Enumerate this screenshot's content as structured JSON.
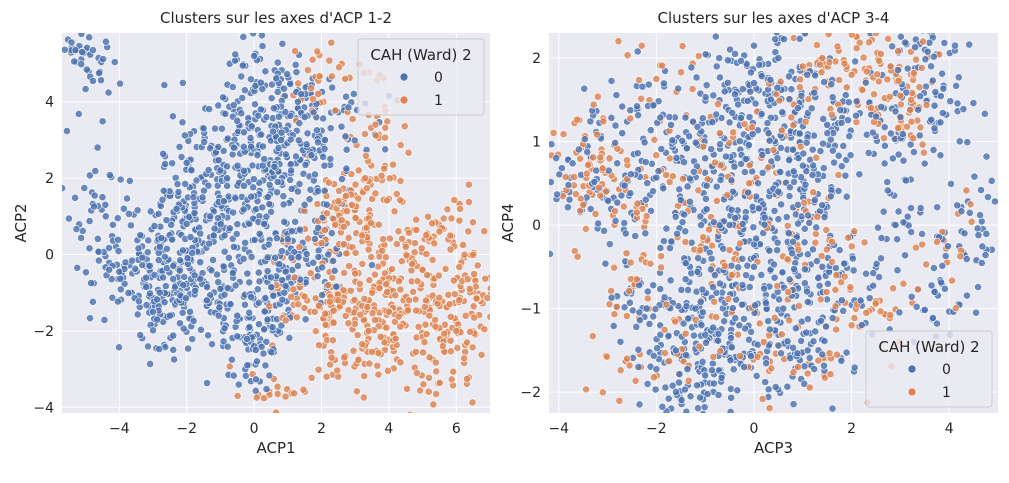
{
  "chart_data": [
    {
      "type": "scatter",
      "title": "Clusters sur les axes d'ACP 1-2",
      "xlabel": "ACP1",
      "ylabel": "ACP2",
      "xlim": [
        -5.7,
        7.0
      ],
      "ylim": [
        -4.15,
        5.8
      ],
      "xticks": [
        -4,
        -2,
        0,
        2,
        4,
        6
      ],
      "yticks": [
        -4,
        -2,
        0,
        2,
        4
      ],
      "grid": true,
      "legend": {
        "title": "CAH (Ward) 2",
        "placement": "top-right",
        "entries": [
          "0",
          "1"
        ]
      },
      "series": [
        {
          "name": "0",
          "color": "#4c72b0",
          "points": [
            [
              -5.3,
              5.35
            ],
            [
              -5.1,
              5.3
            ],
            [
              -4.6,
              4.75
            ],
            [
              -4.5,
              1.5
            ],
            [
              -4.4,
              1.0
            ],
            [
              -4.2,
              -0.3
            ],
            [
              -4.0,
              -0.45
            ],
            [
              -4.3,
              -0.4
            ],
            [
              -3.2,
              -0.85
            ],
            [
              -3.0,
              -1.5
            ],
            [
              -2.8,
              -1.0
            ],
            [
              -2.5,
              -1.6
            ],
            [
              -2.2,
              -1.8
            ],
            [
              -1.0,
              2.2
            ],
            [
              -0.6,
              2.8
            ],
            [
              -0.3,
              3.2
            ],
            [
              0.0,
              5.2
            ],
            [
              0.2,
              4.5
            ],
            [
              0.2,
              3.8
            ],
            [
              0.3,
              2.5
            ],
            [
              -0.5,
              3.5
            ],
            [
              0.8,
              3.0
            ],
            [
              1.3,
              4.0
            ],
            [
              1.4,
              4.2
            ],
            [
              1.5,
              3.6
            ],
            [
              2.1,
              3.0
            ],
            [
              2.8,
              3.85
            ],
            [
              0.0,
              -2.4
            ],
            [
              -0.2,
              -2.9
            ],
            [
              0.05,
              -2.5
            ],
            [
              -0.5,
              -1.6
            ],
            [
              0.4,
              -1.7
            ],
            [
              -2.0,
              2.4
            ],
            [
              -1.5,
              3.3
            ],
            [
              -2.0,
              0.8
            ],
            [
              -1.8,
              1.5
            ],
            [
              -2.8,
              0.2
            ],
            [
              -2.4,
              -0.3
            ],
            [
              -2.1,
              -0.8
            ],
            [
              -1.6,
              -0.2
            ],
            [
              -1.2,
              0.5
            ],
            [
              -0.9,
              1.4
            ],
            [
              -0.6,
              0.2
            ],
            [
              -0.2,
              -0.5
            ],
            [
              0.3,
              0.8
            ],
            [
              0.7,
              1.9
            ],
            [
              1.1,
              2.2
            ],
            [
              1.5,
              1.3
            ],
            [
              1.9,
              0.7
            ],
            [
              2.2,
              0.0
            ],
            [
              -3.1,
              -0.3
            ],
            [
              -2.6,
              0.9
            ],
            [
              -2.3,
              1.2
            ],
            [
              -1.4,
              -1.2
            ],
            [
              -1.0,
              -0.9
            ],
            [
              -0.7,
              -1.3
            ],
            [
              -0.3,
              1.8
            ],
            [
              0.1,
              2.6
            ],
            [
              0.6,
              2.3
            ],
            [
              1.0,
              0.4
            ],
            [
              1.3,
              -0.3
            ],
            [
              -1.9,
              -1.5
            ],
            [
              -2.7,
              -0.6
            ],
            [
              -1.3,
              1.0
            ],
            [
              -0.8,
              2.0
            ],
            [
              0.5,
              -0.6
            ],
            [
              0.9,
              -1.0
            ],
            [
              1.7,
              2.6
            ]
          ]
        },
        {
          "name": "1",
          "color": "#dd8452",
          "points": [
            [
              0.7,
              -3.65
            ],
            [
              2.3,
              -2.7
            ],
            [
              3.5,
              -2.55
            ],
            [
              4.8,
              -2.55
            ],
            [
              5.4,
              -3.65
            ],
            [
              5.6,
              -2.4
            ],
            [
              6.0,
              -2.0
            ],
            [
              6.2,
              0.25
            ],
            [
              6.4,
              -0.9
            ],
            [
              6.6,
              -1.15
            ],
            [
              5.8,
              -1.3
            ],
            [
              5.5,
              0.6
            ],
            [
              4.5,
              0.2
            ],
            [
              3.6,
              3.4
            ],
            [
              3.3,
              2.0
            ],
            [
              2.7,
              4.6
            ],
            [
              2.5,
              1.4
            ],
            [
              1.9,
              4.2
            ],
            [
              3.6,
              1.6
            ],
            [
              2.5,
              -1.2
            ],
            [
              3.0,
              -0.5
            ],
            [
              3.5,
              -1.0
            ],
            [
              4.0,
              -1.5
            ],
            [
              4.3,
              -0.7
            ],
            [
              2.2,
              -0.8
            ],
            [
              3.2,
              0.5
            ],
            [
              3.8,
              0.1
            ],
            [
              4.6,
              -1.2
            ],
            [
              2.8,
              -1.8
            ],
            [
              1.8,
              -1.5
            ],
            [
              1.2,
              -0.6
            ],
            [
              2.0,
              0.3
            ],
            [
              3.4,
              -2.0
            ],
            [
              4.2,
              -2.2
            ],
            [
              5.0,
              -0.4
            ],
            [
              5.2,
              -1.6
            ],
            [
              2.6,
              0.9
            ],
            [
              1.5,
              -1.1
            ],
            [
              2.9,
              1.3
            ]
          ]
        }
      ]
    },
    {
      "type": "scatter",
      "title": "Clusters sur les axes d'ACP 3-4",
      "xlabel": "ACP3",
      "ylabel": "ACP4",
      "xlim": [
        -4.2,
        5.0
      ],
      "ylim": [
        -2.25,
        2.3
      ],
      "xticks": [
        -4,
        -2,
        0,
        2,
        4
      ],
      "yticks": [
        -2,
        -1,
        0,
        1,
        2
      ],
      "grid": true,
      "legend": {
        "title": "CAH (Ward) 2",
        "placement": "lower-right",
        "entries": [
          "0",
          "1"
        ]
      },
      "series": [
        {
          "name": "0",
          "color": "#4c72b0",
          "points": [
            [
              -3.8,
              0.48
            ],
            [
              -2.8,
              0.27
            ],
            [
              -2.7,
              1.1
            ],
            [
              -2.2,
              -1.0
            ],
            [
              -1.6,
              -1.5
            ],
            [
              -1.3,
              -2.05
            ],
            [
              -1.0,
              -1.8
            ],
            [
              -0.6,
              1.6
            ],
            [
              0.0,
              1.7
            ],
            [
              0.5,
              2.0
            ],
            [
              1.5,
              1.2
            ],
            [
              2.5,
              1.3
            ],
            [
              3.3,
              2.13
            ],
            [
              3.7,
              1.43
            ],
            [
              3.7,
              -0.8
            ],
            [
              4.6,
              -0.12
            ],
            [
              2.9,
              0.0
            ],
            [
              1.8,
              -0.9
            ],
            [
              1.1,
              -1.5
            ],
            [
              -0.5,
              0.0
            ],
            [
              0.0,
              -0.5
            ],
            [
              0.5,
              0.4
            ],
            [
              -1.0,
              0.8
            ],
            [
              0.8,
              -0.2
            ],
            [
              -0.3,
              -1.2
            ],
            [
              0.3,
              1.1
            ],
            [
              1.2,
              0.6
            ],
            [
              -1.5,
              0.3
            ],
            [
              -0.8,
              -0.6
            ],
            [
              0.6,
              -1.0
            ],
            [
              -1.2,
              -1.0
            ],
            [
              1.4,
              -0.5
            ],
            [
              -0.4,
              0.7
            ],
            [
              0.9,
              1.4
            ],
            [
              -1.7,
              1.2
            ],
            [
              0.1,
              0.2
            ],
            [
              -0.2,
              -1.7
            ]
          ]
        },
        {
          "name": "1",
          "color": "#dd8452",
          "points": [
            [
              -3.4,
              0.72
            ],
            [
              -3.1,
              0.68
            ],
            [
              -3.5,
              0.24
            ],
            [
              -2.4,
              0.15
            ],
            [
              -2.4,
              -0.65
            ],
            [
              -2.6,
              -1.6
            ],
            [
              -2.0,
              1.75
            ],
            [
              2.0,
              1.8
            ],
            [
              2.4,
              1.4
            ],
            [
              2.6,
              2.05
            ],
            [
              2.8,
              1.9
            ],
            [
              3.0,
              1.55
            ],
            [
              3.2,
              1.38
            ],
            [
              3.75,
              -0.2
            ],
            [
              2.3,
              -1.05
            ],
            [
              2.0,
              -1.2
            ],
            [
              1.9,
              1.65
            ],
            [
              1.4,
              2.0
            ],
            [
              1.0,
              1.9
            ],
            [
              -0.5,
              -0.3
            ],
            [
              0.4,
              0.9
            ],
            [
              -1.1,
              -0.3
            ],
            [
              0.7,
              -0.8
            ],
            [
              -0.7,
              1.1
            ],
            [
              1.3,
              0.1
            ],
            [
              -1.4,
              -1.3
            ],
            [
              0.2,
              -1.4
            ],
            [
              1.6,
              -0.2
            ],
            [
              -0.1,
              0.5
            ],
            [
              -1.8,
              0.6
            ],
            [
              0.9,
              -1.7
            ]
          ]
        }
      ]
    }
  ]
}
